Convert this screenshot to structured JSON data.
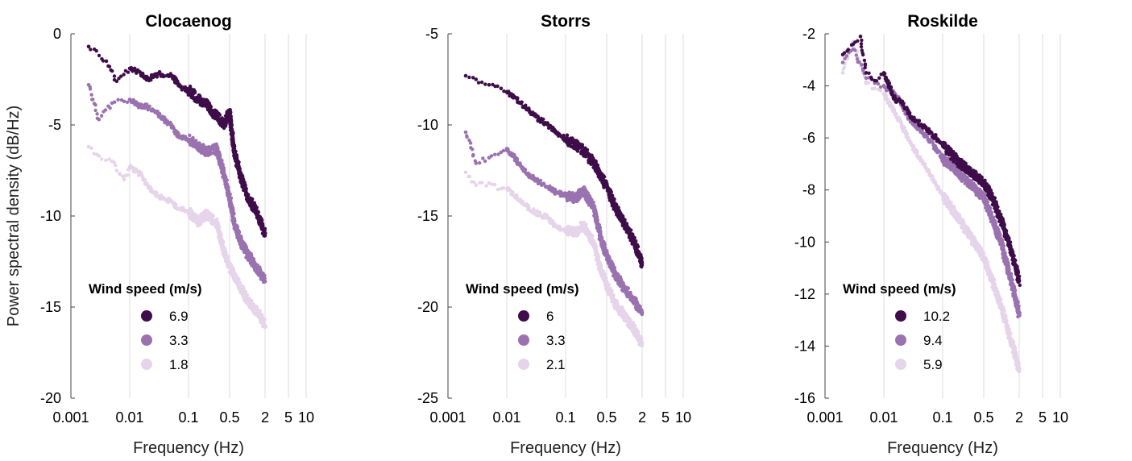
{
  "chart_data": [
    {
      "type": "scatter",
      "title": "Clocaenog",
      "xlabel": "Frequency (Hz)",
      "ylabel": "Power spectral density (dB/Hz)",
      "xscale": "log",
      "xlim": [
        0.001,
        10
      ],
      "ylim": [
        -20,
        0
      ],
      "x_ticks": [
        0.001,
        0.01,
        0.1,
        0.5,
        2,
        5,
        10
      ],
      "x_tick_labels": [
        "0.001",
        "0.01",
        "0.1",
        "0.5",
        "2",
        "5",
        "10"
      ],
      "y_ticks": [
        0,
        -5,
        -10,
        -15,
        -20
      ],
      "y_tick_labels": [
        "0",
        "-5",
        "-10",
        "-15",
        "-20"
      ],
      "grid": "vertical",
      "legend_title": "Wind speed (m/s)",
      "legend_position": "bottom-left",
      "series": [
        {
          "name": "6.9",
          "color": "#3f0d4a",
          "points": [
            [
              0.002,
              -0.7
            ],
            [
              0.004,
              -1.5
            ],
            [
              0.006,
              -2.6
            ],
            [
              0.01,
              -1.9
            ],
            [
              0.015,
              -2.1
            ],
            [
              0.02,
              -2.5
            ],
            [
              0.03,
              -2.2
            ],
            [
              0.05,
              -2.3
            ],
            [
              0.08,
              -3.0
            ],
            [
              0.1,
              -3.1
            ],
            [
              0.15,
              -3.6
            ],
            [
              0.2,
              -3.9
            ],
            [
              0.3,
              -4.5
            ],
            [
              0.4,
              -5.0
            ],
            [
              0.5,
              -4.3
            ],
            [
              0.6,
              -6.5
            ],
            [
              0.8,
              -8.0
            ],
            [
              1.0,
              -8.9
            ],
            [
              1.5,
              -9.9
            ],
            [
              2.0,
              -11.0
            ]
          ]
        },
        {
          "name": "3.3",
          "color": "#9a72b0",
          "points": [
            [
              0.002,
              -2.8
            ],
            [
              0.003,
              -4.7
            ],
            [
              0.005,
              -3.8
            ],
            [
              0.01,
              -3.6
            ],
            [
              0.015,
              -4.0
            ],
            [
              0.02,
              -4.0
            ],
            [
              0.03,
              -4.4
            ],
            [
              0.05,
              -5.0
            ],
            [
              0.07,
              -5.7
            ],
            [
              0.1,
              -5.8
            ],
            [
              0.15,
              -6.2
            ],
            [
              0.2,
              -6.5
            ],
            [
              0.3,
              -6.3
            ],
            [
              0.4,
              -7.7
            ],
            [
              0.5,
              -9.0
            ],
            [
              0.6,
              -10.4
            ],
            [
              0.8,
              -11.5
            ],
            [
              1.0,
              -12.1
            ],
            [
              1.5,
              -12.9
            ],
            [
              2.0,
              -13.6
            ]
          ]
        },
        {
          "name": "1.8",
          "color": "#e6d4ea",
          "points": [
            [
              0.002,
              -6.2
            ],
            [
              0.003,
              -6.7
            ],
            [
              0.005,
              -7.0
            ],
            [
              0.008,
              -8.0
            ],
            [
              0.01,
              -7.3
            ],
            [
              0.015,
              -7.7
            ],
            [
              0.02,
              -8.3
            ],
            [
              0.03,
              -8.9
            ],
            [
              0.05,
              -9.2
            ],
            [
              0.07,
              -9.6
            ],
            [
              0.1,
              -9.8
            ],
            [
              0.15,
              -10.3
            ],
            [
              0.2,
              -9.9
            ],
            [
              0.3,
              -10.4
            ],
            [
              0.4,
              -12.0
            ],
            [
              0.5,
              -12.8
            ],
            [
              0.7,
              -13.7
            ],
            [
              1.0,
              -14.6
            ],
            [
              1.5,
              -15.3
            ],
            [
              2.0,
              -16.0
            ]
          ]
        }
      ]
    },
    {
      "type": "scatter",
      "title": "Storrs",
      "xlabel": "Frequency (Hz)",
      "ylabel": "",
      "xscale": "log",
      "xlim": [
        0.001,
        10
      ],
      "ylim": [
        -25,
        -5
      ],
      "x_ticks": [
        0.001,
        0.01,
        0.1,
        0.5,
        2,
        5,
        10
      ],
      "x_tick_labels": [
        "0.001",
        "0.01",
        "0.1",
        "0.5",
        "2",
        "5",
        "10"
      ],
      "y_ticks": [
        -5,
        -10,
        -15,
        -20,
        -25
      ],
      "y_tick_labels": [
        "-5",
        "-10",
        "-15",
        "-20",
        "-25"
      ],
      "grid": "vertical",
      "legend_title": "Wind speed (m/s)",
      "legend_position": "bottom-left",
      "series": [
        {
          "name": "6",
          "color": "#3f0d4a",
          "points": [
            [
              0.002,
              -7.3
            ],
            [
              0.003,
              -7.5
            ],
            [
              0.005,
              -7.8
            ],
            [
              0.008,
              -8.0
            ],
            [
              0.01,
              -8.2
            ],
            [
              0.015,
              -8.6
            ],
            [
              0.02,
              -9.0
            ],
            [
              0.03,
              -9.5
            ],
            [
              0.05,
              -10.0
            ],
            [
              0.07,
              -10.4
            ],
            [
              0.1,
              -10.8
            ],
            [
              0.15,
              -11.1
            ],
            [
              0.2,
              -11.4
            ],
            [
              0.3,
              -12.1
            ],
            [
              0.4,
              -12.8
            ],
            [
              0.5,
              -13.4
            ],
            [
              0.7,
              -14.5
            ],
            [
              1.0,
              -15.4
            ],
            [
              1.5,
              -16.5
            ],
            [
              2.0,
              -17.6
            ]
          ]
        },
        {
          "name": "3.3",
          "color": "#9a72b0",
          "points": [
            [
              0.002,
              -10.4
            ],
            [
              0.003,
              -12.1
            ],
            [
              0.005,
              -11.8
            ],
            [
              0.008,
              -11.5
            ],
            [
              0.01,
              -11.3
            ],
            [
              0.015,
              -12.0
            ],
            [
              0.02,
              -12.5
            ],
            [
              0.03,
              -13.0
            ],
            [
              0.05,
              -13.4
            ],
            [
              0.07,
              -13.7
            ],
            [
              0.1,
              -13.9
            ],
            [
              0.15,
              -14.0
            ],
            [
              0.2,
              -13.6
            ],
            [
              0.3,
              -14.5
            ],
            [
              0.4,
              -16.3
            ],
            [
              0.5,
              -17.2
            ],
            [
              0.7,
              -18.2
            ],
            [
              1.0,
              -19.0
            ],
            [
              1.5,
              -19.7
            ],
            [
              2.0,
              -20.3
            ]
          ]
        },
        {
          "name": "2.1",
          "color": "#e6d4ea",
          "points": [
            [
              0.002,
              -12.6
            ],
            [
              0.003,
              -13.3
            ],
            [
              0.005,
              -13.2
            ],
            [
              0.008,
              -13.5
            ],
            [
              0.01,
              -13.5
            ],
            [
              0.015,
              -14.0
            ],
            [
              0.02,
              -14.4
            ],
            [
              0.03,
              -14.8
            ],
            [
              0.05,
              -15.1
            ],
            [
              0.07,
              -15.6
            ],
            [
              0.1,
              -15.8
            ],
            [
              0.15,
              -15.9
            ],
            [
              0.2,
              -15.5
            ],
            [
              0.3,
              -16.5
            ],
            [
              0.4,
              -18.0
            ],
            [
              0.5,
              -18.8
            ],
            [
              0.7,
              -19.8
            ],
            [
              1.0,
              -20.5
            ],
            [
              1.5,
              -21.3
            ],
            [
              2.0,
              -22.0
            ]
          ]
        }
      ]
    },
    {
      "type": "scatter",
      "title": "Roskilde",
      "xlabel": "Frequency (Hz)",
      "ylabel": "",
      "xscale": "log",
      "xlim": [
        0.001,
        10
      ],
      "ylim": [
        -16,
        -2
      ],
      "x_ticks": [
        0.001,
        0.01,
        0.1,
        0.5,
        2,
        5,
        10
      ],
      "x_tick_labels": [
        "0.001",
        "0.01",
        "0.1",
        "0.5",
        "2",
        "5",
        "10"
      ],
      "y_ticks": [
        -2,
        -4,
        -6,
        -8,
        -10,
        -12,
        -14,
        -16
      ],
      "y_tick_labels": [
        "-2",
        "-4",
        "-6",
        "-8",
        "-10",
        "-12",
        "-14",
        "-16"
      ],
      "grid": "vertical",
      "legend_title": "Wind speed (m/s)",
      "legend_position": "bottom-left",
      "series": [
        {
          "name": "10.2",
          "color": "#3f0d4a",
          "points": [
            [
              0.002,
              -2.8
            ],
            [
              0.003,
              -2.4
            ],
            [
              0.004,
              -2.1
            ],
            [
              0.005,
              -3.5
            ],
            [
              0.007,
              -3.8
            ],
            [
              0.01,
              -3.5
            ],
            [
              0.015,
              -4.5
            ],
            [
              0.02,
              -4.6
            ],
            [
              0.03,
              -5.2
            ],
            [
              0.05,
              -5.6
            ],
            [
              0.07,
              -5.9
            ],
            [
              0.1,
              -6.3
            ],
            [
              0.15,
              -6.7
            ],
            [
              0.2,
              -7.0
            ],
            [
              0.3,
              -7.3
            ],
            [
              0.5,
              -7.7
            ],
            [
              0.7,
              -8.3
            ],
            [
              1.0,
              -9.2
            ],
            [
              1.5,
              -10.4
            ],
            [
              2.0,
              -11.5
            ]
          ]
        },
        {
          "name": "9.4",
          "color": "#9a72b0",
          "points": [
            [
              0.002,
              -3.1
            ],
            [
              0.003,
              -2.6
            ],
            [
              0.005,
              -3.7
            ],
            [
              0.007,
              -3.9
            ],
            [
              0.01,
              -4.0
            ],
            [
              0.015,
              -4.3
            ],
            [
              0.02,
              -4.7
            ],
            [
              0.03,
              -5.4
            ],
            [
              0.05,
              -5.9
            ],
            [
              0.07,
              -6.3
            ],
            [
              0.1,
              -6.8
            ],
            [
              0.15,
              -7.1
            ],
            [
              0.2,
              -7.4
            ],
            [
              0.3,
              -7.8
            ],
            [
              0.5,
              -8.3
            ],
            [
              0.7,
              -9.1
            ],
            [
              1.0,
              -10.1
            ],
            [
              1.5,
              -11.6
            ],
            [
              2.0,
              -12.8
            ]
          ]
        },
        {
          "name": "5.9",
          "color": "#e6d4ea",
          "points": [
            [
              0.002,
              -3.5
            ],
            [
              0.003,
              -2.3
            ],
            [
              0.005,
              -3.9
            ],
            [
              0.007,
              -4.1
            ],
            [
              0.01,
              -4.3
            ],
            [
              0.015,
              -5.0
            ],
            [
              0.02,
              -5.5
            ],
            [
              0.03,
              -6.3
            ],
            [
              0.05,
              -7.1
            ],
            [
              0.07,
              -7.6
            ],
            [
              0.1,
              -8.2
            ],
            [
              0.15,
              -8.8
            ],
            [
              0.2,
              -9.2
            ],
            [
              0.3,
              -9.8
            ],
            [
              0.5,
              -10.6
            ],
            [
              0.7,
              -11.5
            ],
            [
              1.0,
              -12.5
            ],
            [
              1.5,
              -13.9
            ],
            [
              2.0,
              -14.9
            ]
          ]
        }
      ]
    }
  ]
}
